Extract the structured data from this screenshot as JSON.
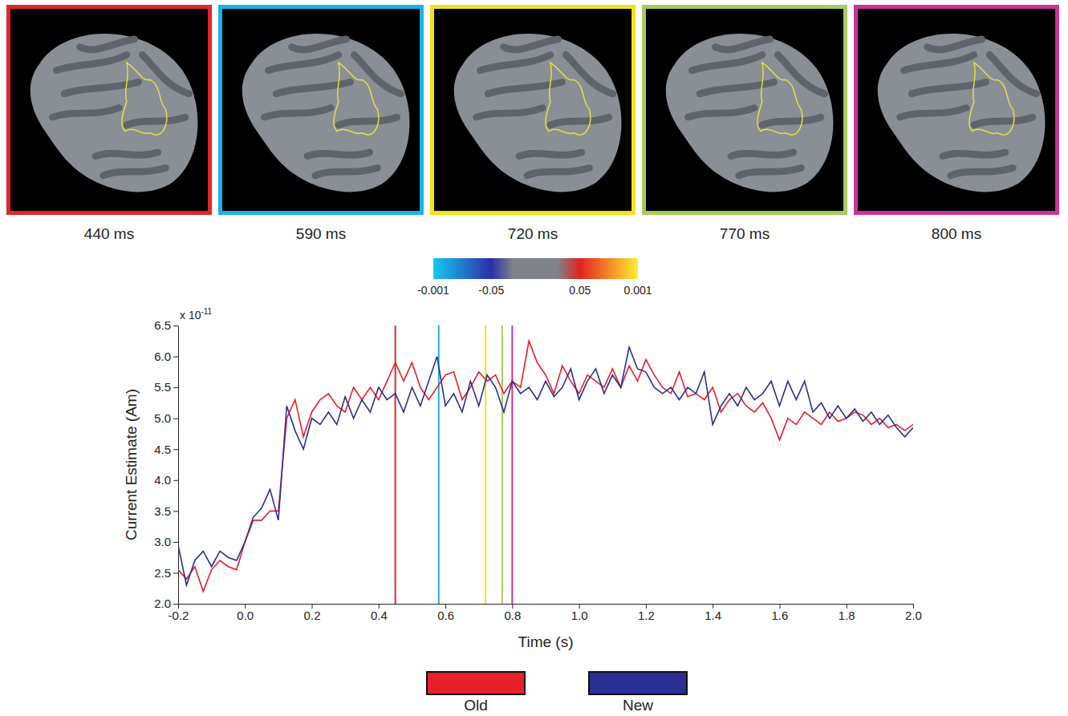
{
  "chart_data": {
    "type": "line",
    "x_label": "Time (s)",
    "y_label": "Current Estimate (Am)",
    "y_multiplier": "x 10",
    "y_exponent": "-11",
    "legend": "bottom",
    "xlim": [
      -0.2,
      2.0
    ],
    "xticks": [
      -0.2,
      {
        "value": 0,
        "label": "0.0"
      },
      0.2,
      0.4,
      0.6,
      0.8,
      {
        "value": 1,
        "label": "1.0"
      },
      1.2,
      1.4,
      1.6,
      1.8,
      {
        "value": 2,
        "label": "2.0"
      }
    ],
    "ylim": [
      2.0,
      6.5
    ],
    "yticks": [
      {
        "value": 2,
        "label": "2.0"
      },
      2.5,
      {
        "value": 3,
        "label": "3.0"
      },
      3.5,
      {
        "value": 4,
        "label": "4.0"
      },
      4.5,
      {
        "value": 5,
        "label": "5.0"
      },
      5.5,
      {
        "value": 6,
        "label": "6.0"
      },
      6.5
    ],
    "x": [
      -0.2,
      -0.175,
      -0.15,
      -0.125,
      -0.1,
      -0.075,
      -0.05,
      -0.025,
      0.0,
      0.025,
      0.05,
      0.075,
      0.1,
      0.125,
      0.15,
      0.175,
      0.2,
      0.225,
      0.25,
      0.275,
      0.3,
      0.325,
      0.35,
      0.375,
      0.4,
      0.425,
      0.45,
      0.475,
      0.5,
      0.525,
      0.55,
      0.575,
      0.6,
      0.625,
      0.65,
      0.675,
      0.7,
      0.725,
      0.75,
      0.775,
      0.8,
      0.825,
      0.85,
      0.875,
      0.9,
      0.925,
      0.95,
      0.975,
      1.0,
      1.025,
      1.05,
      1.075,
      1.1,
      1.125,
      1.15,
      1.175,
      1.2,
      1.225,
      1.25,
      1.275,
      1.3,
      1.325,
      1.35,
      1.375,
      1.4,
      1.425,
      1.45,
      1.475,
      1.5,
      1.525,
      1.55,
      1.575,
      1.6,
      1.625,
      1.65,
      1.675,
      1.7,
      1.725,
      1.75,
      1.775,
      1.8,
      1.825,
      1.85,
      1.875,
      1.9,
      1.925,
      1.95,
      1.975,
      2.0
    ],
    "series": [
      {
        "name": "Old",
        "color": "#e8202a",
        "values": [
          2.55,
          2.4,
          2.6,
          2.2,
          2.55,
          2.7,
          2.6,
          2.55,
          3.0,
          3.35,
          3.35,
          3.5,
          3.5,
          5.0,
          5.3,
          4.7,
          5.1,
          5.3,
          5.4,
          5.2,
          5.1,
          5.5,
          5.3,
          5.5,
          5.3,
          5.6,
          5.9,
          5.6,
          5.9,
          5.5,
          5.3,
          5.5,
          5.7,
          5.75,
          5.3,
          5.5,
          5.75,
          5.6,
          5.7,
          5.4,
          5.6,
          5.5,
          6.25,
          5.9,
          5.7,
          5.4,
          5.85,
          5.6,
          5.4,
          5.7,
          5.6,
          5.5,
          5.8,
          5.5,
          5.85,
          5.6,
          5.95,
          5.7,
          5.5,
          5.4,
          5.75,
          5.35,
          5.4,
          5.3,
          5.5,
          5.1,
          5.3,
          5.4,
          5.2,
          5.1,
          5.25,
          5.0,
          4.65,
          5.0,
          4.9,
          5.1,
          5.0,
          4.9,
          5.1,
          4.95,
          5.0,
          5.1,
          5.05,
          4.9,
          5.0,
          4.85,
          4.9,
          4.8,
          4.9
        ]
      },
      {
        "name": "New",
        "color": "#2b2f93",
        "values": [
          2.95,
          2.3,
          2.7,
          2.85,
          2.6,
          2.85,
          2.75,
          2.7,
          3.0,
          3.4,
          3.55,
          3.85,
          3.35,
          5.2,
          4.8,
          4.5,
          5.0,
          4.9,
          5.1,
          4.9,
          5.35,
          5.0,
          5.3,
          5.1,
          5.5,
          5.3,
          5.4,
          5.1,
          5.5,
          5.2,
          5.6,
          6.0,
          5.2,
          5.4,
          5.1,
          5.6,
          5.2,
          5.7,
          5.5,
          5.1,
          5.6,
          5.4,
          5.5,
          5.3,
          5.6,
          5.35,
          5.5,
          5.8,
          5.3,
          5.6,
          5.8,
          5.4,
          5.7,
          5.5,
          6.15,
          5.8,
          5.75,
          5.5,
          5.4,
          5.5,
          5.3,
          5.5,
          5.4,
          5.75,
          4.9,
          5.2,
          5.4,
          5.2,
          5.5,
          5.3,
          5.4,
          5.6,
          5.2,
          5.6,
          5.3,
          5.6,
          5.1,
          5.25,
          5.0,
          5.2,
          5.0,
          5.15,
          4.95,
          5.1,
          4.9,
          5.05,
          4.85,
          4.7,
          4.85
        ]
      }
    ],
    "panels": [
      {
        "label": "440 ms",
        "color": "#e0262b",
        "x": 0.45
      },
      {
        "label": "590 ms",
        "color": "#1ab3e6",
        "x": 0.58
      },
      {
        "label": "720 ms",
        "color": "#f2e318",
        "x": 0.72
      },
      {
        "label": "770 ms",
        "color": "#a6cc5a",
        "x": 0.77
      },
      {
        "label": "800 ms",
        "color": "#cc3399",
        "x": 0.8
      }
    ],
    "colorbar": {
      "range": [
        -3,
        3
      ],
      "ticks": [
        {
          "value": -3,
          "label": "-0.001"
        },
        {
          "value": -1.3,
          "label": "-0.05"
        },
        {
          "value": 1.3,
          "label": "0.05"
        },
        {
          "value": 3,
          "label": "0.001"
        }
      ]
    }
  }
}
